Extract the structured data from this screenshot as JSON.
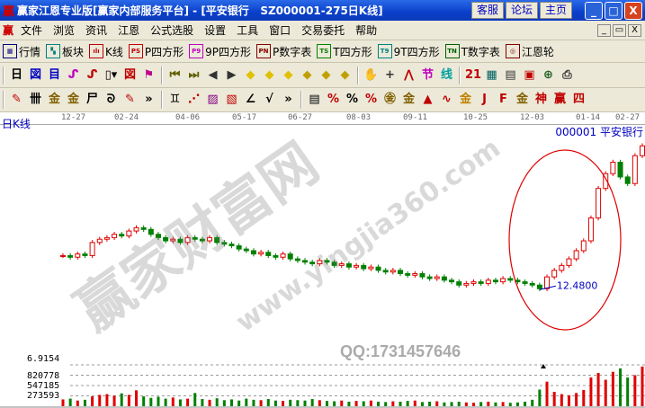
{
  "window": {
    "logo": "赢",
    "title": "赢家江恩专业版[赢家内部服务平台] - [平安银行   SZ000001-275日K线]",
    "buttons": [
      "客服",
      "论坛",
      "主页"
    ],
    "controls": [
      "_",
      "□",
      "X"
    ]
  },
  "menu": {
    "logo": "赢",
    "items": [
      "文件",
      "浏览",
      "资讯",
      "江恩",
      "公式选股",
      "设置",
      "工具",
      "窗口",
      "交易委托",
      "帮助"
    ],
    "mdi": [
      "_",
      "▭",
      "X"
    ]
  },
  "toolbar1": [
    {
      "label": "行情",
      "icon": "grid-icon",
      "glyph": "▦",
      "color": "#000080"
    },
    {
      "label": "板块",
      "icon": "blocks-icon",
      "glyph": "▚",
      "color": "#008080"
    },
    {
      "label": "K线",
      "icon": "candles-icon",
      "glyph": "ılı",
      "color": "#c00000"
    },
    {
      "label": "P四方形",
      "icon": "ps-icon",
      "glyph": "PS",
      "color": "#c00000"
    },
    {
      "label": "9P四方形",
      "icon": "p9-icon",
      "glyph": "P9",
      "color": "#c000c0"
    },
    {
      "label": "P数字表",
      "icon": "pn-icon",
      "glyph": "PN",
      "color": "#800000"
    },
    {
      "label": "T四方形",
      "icon": "ts-icon",
      "glyph": "TS",
      "color": "#008000"
    },
    {
      "label": "9T四方形",
      "icon": "t9-icon",
      "glyph": "T9",
      "color": "#008080"
    },
    {
      "label": "T数字表",
      "icon": "tn-icon",
      "glyph": "TN",
      "color": "#006000"
    },
    {
      "label": "江恩轮",
      "icon": "gann-wheel-icon",
      "glyph": "◎",
      "color": "#800000"
    }
  ],
  "toolbar2": [
    {
      "name": "period-day",
      "glyph": "日▾",
      "color": "#000"
    },
    {
      "name": "chart-icon",
      "glyph": "図",
      "color": "#0000c0"
    },
    {
      "name": "notes-icon",
      "glyph": "目",
      "color": "#0000c0"
    },
    {
      "name": "wave3-icon",
      "glyph": "ᔑ",
      "color": "#c000c0"
    },
    {
      "name": "wave9-icon",
      "glyph": "ᔑ",
      "color": "#c00000"
    },
    {
      "name": "candle-type-icon",
      "glyph": "▯▾",
      "color": "#000"
    },
    {
      "name": "overlay-icon",
      "glyph": "図",
      "color": "#c00000"
    },
    {
      "name": "flag-icon",
      "glyph": "⚑",
      "color": "#c0008f"
    },
    {
      "name": "first-icon",
      "glyph": "⏮",
      "color": "#606000"
    },
    {
      "name": "last-icon",
      "glyph": "⏭",
      "color": "#606000"
    },
    {
      "name": "prev-icon",
      "glyph": "◀",
      "color": "#333"
    },
    {
      "name": "next-icon",
      "glyph": "▶",
      "color": "#333"
    },
    {
      "name": "left-diamond-icon",
      "glyph": "◆",
      "color": "#e0c000"
    },
    {
      "name": "right-diamond-icon",
      "glyph": "◆",
      "color": "#e0c000"
    },
    {
      "name": "expand-icon",
      "glyph": "◆",
      "color": "#e0c000"
    },
    {
      "name": "shrink-icon",
      "glyph": "◆",
      "color": "#c0a000"
    },
    {
      "name": "zoom-in-icon",
      "glyph": "◆",
      "color": "#c0a000"
    },
    {
      "name": "zoom-out-icon",
      "glyph": "◆",
      "color": "#c0a000"
    },
    {
      "name": "hand-icon",
      "glyph": "✋",
      "color": "#333"
    },
    {
      "name": "crosshair-icon",
      "glyph": "+",
      "color": "#333"
    },
    {
      "name": "line-icon",
      "glyph": "⋀",
      "color": "#c00000"
    },
    {
      "name": "segment-icon",
      "glyph": "节",
      "color": "#c000c0"
    },
    {
      "name": "cycle-icon",
      "glyph": "线",
      "color": "#00a0a0"
    },
    {
      "name": "calendar-icon",
      "glyph": "21",
      "color": "#c00000"
    },
    {
      "name": "calculator-icon",
      "glyph": "▦",
      "color": "#006060"
    },
    {
      "name": "report-icon",
      "glyph": "▤",
      "color": "#333"
    },
    {
      "name": "save-icon",
      "glyph": "▣",
      "color": "#c00000"
    },
    {
      "name": "network-icon",
      "glyph": "⊕",
      "color": "#206020"
    },
    {
      "name": "printer-icon",
      "glyph": "⎙",
      "color": "#333"
    }
  ],
  "toolbar3": [
    {
      "name": "pen-icon",
      "glyph": "✎",
      "color": "#c00000"
    },
    {
      "name": "parallel-icon",
      "glyph": "卌",
      "color": "#000"
    },
    {
      "name": "gold-line-icon",
      "glyph": "金",
      "color": "#806000"
    },
    {
      "name": "gold-line2-icon",
      "glyph": "金",
      "color": "#806000"
    },
    {
      "name": "fib-icon",
      "glyph": "尸",
      "color": "#000"
    },
    {
      "name": "spiral-icon",
      "glyph": "ᘐ",
      "color": "#000"
    },
    {
      "name": "brush-icon",
      "glyph": "✎",
      "color": "#c00000"
    },
    {
      "name": "more-icon",
      "glyph": "»",
      "color": "#000"
    },
    {
      "name": "box-icon",
      "glyph": "♊",
      "color": "#000"
    },
    {
      "name": "fan-icon",
      "glyph": "⋰",
      "color": "#c00000"
    },
    {
      "name": "gann-box-icon",
      "glyph": "▨",
      "color": "#800080"
    },
    {
      "name": "gann-square-icon",
      "glyph": "▧",
      "color": "#c00000"
    },
    {
      "name": "angle-icon",
      "glyph": "∠",
      "color": "#000"
    },
    {
      "name": "v-icon",
      "glyph": "√",
      "color": "#000"
    },
    {
      "name": "more2-icon",
      "glyph": "»",
      "color": "#000"
    },
    {
      "name": "table-icon",
      "glyph": "▤",
      "color": "#000"
    },
    {
      "name": "percent-line-icon",
      "glyph": "%",
      "color": "#c00000"
    },
    {
      "name": "percent-icon",
      "glyph": "%",
      "color": "#000"
    },
    {
      "name": "percent-lines-icon",
      "glyph": "%",
      "color": "#c00000"
    },
    {
      "name": "gold-circle-icon",
      "glyph": "㊎",
      "color": "#806000"
    },
    {
      "name": "gold-lines-icon",
      "glyph": "金",
      "color": "#806000"
    },
    {
      "name": "marker-icon",
      "glyph": "▲",
      "color": "#c00000"
    },
    {
      "name": "wave-icon",
      "glyph": "∿",
      "color": "#c00000"
    },
    {
      "name": "gold-bar-icon",
      "glyph": "金",
      "color": "#c08000"
    },
    {
      "name": "j-angle-icon",
      "glyph": "J",
      "color": "#c00000"
    },
    {
      "name": "f-angle-icon",
      "glyph": "F",
      "color": "#c00000"
    },
    {
      "name": "gold-angle-icon",
      "glyph": "金",
      "color": "#806000"
    },
    {
      "name": "god-angle-icon",
      "glyph": "神",
      "color": "#c00000"
    },
    {
      "name": "win-angle-icon",
      "glyph": "赢",
      "color": "#c00000"
    },
    {
      "name": "four-angle-icon",
      "glyph": "四",
      "color": "#c00000"
    }
  ],
  "chart": {
    "period_label": "日K线",
    "stock_label": "000001 平安银行",
    "dates": [
      "12-27",
      "02-24",
      "04-06",
      "05-17",
      "06-27",
      "08-03",
      "09-11",
      "10-25",
      "12-03",
      "01-14",
      "02-27"
    ],
    "low_annotation": "12.4800",
    "volume_labels": [
      "6.9154",
      "820778",
      "547185",
      "273593"
    ],
    "up_color": "#e00000",
    "down_color": "#008000",
    "annotation_color": "#0000c0",
    "circle_color": "#e00000"
  },
  "watermark": {
    "main": "赢家财富网",
    "url": "www.yingjia360.com",
    "qq": "QQ:1731457646"
  },
  "chart_data": {
    "type": "candlestick",
    "closes": [
      14.5,
      14.4,
      14.6,
      14.5,
      15.3,
      15.5,
      15.6,
      15.8,
      15.7,
      16.0,
      16.2,
      16.1,
      15.8,
      15.6,
      15.4,
      15.5,
      15.3,
      15.6,
      15.5,
      15.4,
      15.6,
      15.3,
      15.2,
      15.1,
      14.9,
      14.8,
      14.6,
      14.7,
      14.5,
      14.4,
      14.6,
      14.3,
      14.2,
      14.1,
      14.0,
      14.2,
      14.1,
      13.9,
      14.0,
      13.8,
      13.9,
      13.7,
      13.8,
      13.6,
      13.5,
      13.6,
      13.4,
      13.3,
      13.4,
      13.2,
      13.1,
      13.2,
      13.0,
      12.9,
      12.7,
      12.8,
      12.9,
      12.8,
      13.0,
      12.9,
      13.1,
      13.0,
      12.9,
      12.8,
      12.7,
      12.48,
      13.2,
      13.6,
      13.9,
      14.3,
      14.8,
      15.4,
      16.8,
      18.6,
      19.5,
      20.2,
      19.3,
      18.9,
      20.6,
      21.2
    ],
    "ylim": [
      12.0,
      21.6
    ],
    "volumes": [
      180000,
      200000,
      150000,
      170000,
      260000,
      300000,
      320000,
      280000,
      340000,
      300000,
      420000,
      260000,
      220000,
      250000,
      200000,
      230000,
      180000,
      200000,
      350000,
      190000,
      170000,
      210000,
      160000,
      180000,
      150000,
      200000,
      170000,
      160000,
      190000,
      150000,
      140000,
      170000,
      160000,
      150000,
      190000,
      160000,
      140000,
      130000,
      150000,
      120000,
      140000,
      130000,
      150000,
      120000,
      110000,
      130000,
      120000,
      140000,
      150000,
      110000,
      120000,
      130000,
      100000,
      110000,
      120000,
      100000,
      90000,
      110000,
      120000,
      100000,
      110000,
      90000,
      100000,
      120000,
      170000,
      440000,
      650000,
      380000,
      320000,
      290000,
      350000,
      430000,
      760000,
      880000,
      700000,
      910000,
      1000000,
      760000,
      820000,
      1050000
    ],
    "volume_ylim": [
      0,
      1094370
    ]
  }
}
